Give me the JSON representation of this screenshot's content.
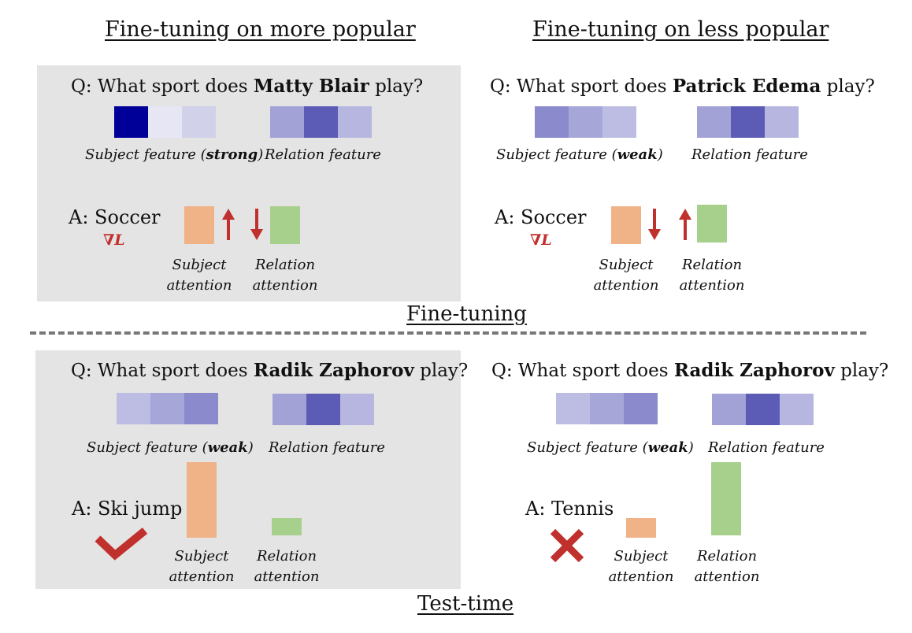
{
  "titles": {
    "popular": "Fine-tuning on more popular",
    "less_popular": "Fine-tuning on less popular",
    "fine_tuning": "Fine-tuning",
    "test_time": "Test-time"
  },
  "panels": {
    "ft_popular": {
      "question_prefix": "Q: What sport does ",
      "entity": "Matty Blair",
      "question_suffix": " play?",
      "subject_caption_prefix": "Subject feature (",
      "subject_caption_strength": "strong",
      "subject_caption_suffix": ")",
      "relation_caption": "Relation feature",
      "answer": "A: Soccer",
      "gradient": "∇L",
      "subject_attention_line1": "Subject",
      "subject_attention_line2": "attention",
      "relation_attention_line1": "Relation",
      "relation_attention_line2": "attention",
      "subject_colors": [
        "#000099",
        "#e6e6f5",
        "#d1d1ea"
      ],
      "relation_colors": [
        "#a2a2d6",
        "#5c5cb6",
        "#b6b6e0"
      ]
    },
    "ft_less": {
      "question_prefix": "Q: What sport does ",
      "entity": "Patrick Edema",
      "question_suffix": " play?",
      "subject_caption_prefix": "Subject feature (",
      "subject_caption_strength": "weak",
      "subject_caption_suffix": ")",
      "relation_caption": "Relation feature",
      "answer": "A: Soccer",
      "gradient": "∇L",
      "subject_attention_line1": "Subject",
      "subject_attention_line2": "attention",
      "relation_attention_line1": "Relation",
      "relation_attention_line2": "attention",
      "subject_colors": [
        "#8a8acd",
        "#a6a6d9",
        "#bdbde3"
      ],
      "relation_colors": [
        "#a2a2d6",
        "#5c5cb6",
        "#b6b6e0"
      ]
    },
    "test_left": {
      "question_prefix": "Q: What sport does ",
      "entity": "Radik Zaphorov",
      "question_suffix": " play?",
      "subject_caption_prefix": "Subject feature (",
      "subject_caption_strength": "weak",
      "subject_caption_suffix": ")",
      "relation_caption": "Relation feature",
      "answer": "A: Ski jump",
      "subject_attention_line1": "Subject",
      "subject_attention_line2": "attention",
      "relation_attention_line1": "Relation",
      "relation_attention_line2": "attention",
      "subject_colors": [
        "#bdbde3",
        "#a6a6d9",
        "#8a8acd"
      ],
      "relation_colors": [
        "#a2a2d6",
        "#5c5cb6",
        "#b6b6e0"
      ],
      "verdict_icon": "check-icon"
    },
    "test_right": {
      "question_prefix": "Q: What sport does ",
      "entity": "Radik Zaphorov",
      "question_suffix": " play?",
      "subject_caption_prefix": "Subject feature (",
      "subject_caption_strength": "weak",
      "subject_caption_suffix": ")",
      "relation_caption": "Relation feature",
      "answer": "A: Tennis",
      "subject_attention_line1": "Subject",
      "subject_attention_line2": "attention",
      "relation_attention_line1": "Relation",
      "relation_attention_line2": "attention",
      "subject_colors": [
        "#bdbde3",
        "#a6a6d9",
        "#8a8acd"
      ],
      "relation_colors": [
        "#a2a2d6",
        "#5c5cb6",
        "#b6b6e0"
      ],
      "verdict_icon": "cross-icon"
    }
  },
  "colors": {
    "subject_attention": "#f0b287",
    "relation_attention": "#a8d08d",
    "arrow_red": "#c0302c",
    "panel_gray": "#e4e4e4"
  }
}
